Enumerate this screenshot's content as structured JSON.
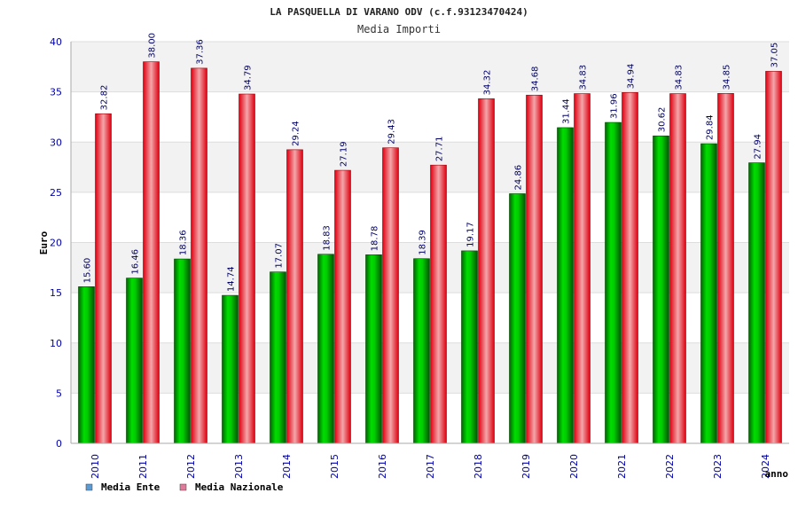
{
  "chart_data": {
    "type": "bar",
    "title": "LA PASQUELLA DI VARANO ODV (c.f.93123470424)",
    "subtitle": "Media Importi",
    "xlabel": "anno",
    "ylabel": "Euro",
    "ylim": [
      0,
      40
    ],
    "yticks": [
      0,
      5,
      10,
      15,
      20,
      25,
      30,
      35,
      40
    ],
    "grid": true,
    "legend_position": "bottom-left",
    "categories": [
      "2010",
      "2011",
      "2012",
      "2013",
      "2014",
      "2015",
      "2016",
      "2017",
      "2018",
      "2019",
      "2020",
      "2021",
      "2022",
      "2023",
      "2024"
    ],
    "series": [
      {
        "name": "Media Ente",
        "values": [
          15.6,
          16.46,
          18.36,
          14.74,
          17.07,
          18.83,
          18.78,
          18.39,
          19.17,
          24.86,
          31.44,
          31.96,
          30.62,
          29.84,
          27.94
        ],
        "labels": [
          "15.60",
          "16.46",
          "18.36",
          "14.74",
          "17.07",
          "18.83",
          "18.78",
          "18.39",
          "19.17",
          "24.86",
          "31.44",
          "31.96",
          "30.62",
          "29.84",
          "27.94"
        ],
        "color": "#00c000",
        "legend_color": "#5b9bd5"
      },
      {
        "name": "Media Nazionale",
        "values": [
          32.82,
          38.0,
          37.36,
          34.79,
          29.24,
          27.19,
          29.43,
          27.71,
          34.32,
          34.68,
          34.83,
          34.94,
          34.83,
          34.85,
          37.05
        ],
        "labels": [
          "32.82",
          "38.00",
          "37.36",
          "34.79",
          "29.24",
          "27.19",
          "29.43",
          "27.71",
          "34.32",
          "34.68",
          "34.83",
          "34.94",
          "34.83",
          "34.85",
          "37.05"
        ],
        "color": "#e8101e",
        "legend_color": "#e07a9a"
      }
    ],
    "colors": {
      "axis_text": "#0000aa",
      "label_text": "#000066",
      "band": "#f2f2f2"
    }
  }
}
